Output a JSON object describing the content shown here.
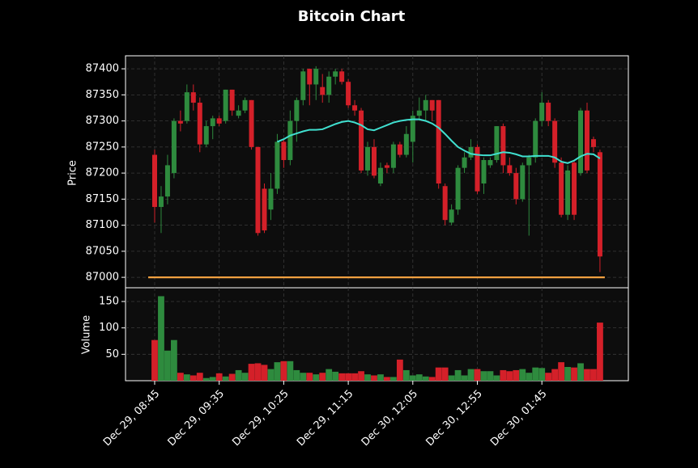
{
  "chart_data": {
    "type": "candlestick",
    "title": "Bitcoin Chart",
    "ylabel": "Price",
    "categories": [
      "Dec 29, 08:45",
      null,
      null,
      null,
      null,
      null,
      null,
      null,
      null,
      null,
      "Dec 29, 09:35",
      null,
      null,
      null,
      null,
      null,
      null,
      null,
      null,
      null,
      "Dec 29, 10:25",
      null,
      null,
      null,
      null,
      null,
      null,
      null,
      null,
      null,
      "Dec 29, 11:15",
      null,
      null,
      null,
      null,
      null,
      null,
      null,
      null,
      null,
      "Dec 30, 12:05",
      null,
      null,
      null,
      null,
      null,
      null,
      null,
      null,
      null,
      "Dec 30, 12:55",
      null,
      null,
      null,
      null,
      null,
      null,
      null,
      null,
      null,
      "Dec 30, 01:45",
      null,
      null,
      null,
      null,
      null,
      null,
      null,
      null,
      null
    ],
    "open": [
      87235,
      87135,
      87155,
      87200,
      87300,
      87300,
      87355,
      87335,
      87255,
      87290,
      87305,
      87300,
      87360,
      87310,
      87320,
      87340,
      87250,
      87170,
      87130,
      87170,
      87260,
      87225,
      87300,
      87340,
      87400,
      87370,
      87365,
      87350,
      87385,
      87395,
      87375,
      87330,
      87320,
      87205,
      87250,
      87180,
      87215,
      87210,
      87255,
      87235,
      87260,
      87310,
      87320,
      87340,
      87340,
      87175,
      87105,
      87130,
      87210,
      87230,
      87250,
      87180,
      87215,
      87225,
      87290,
      87215,
      87200,
      87150,
      87215,
      87230,
      87300,
      87335,
      87300,
      87220,
      87120,
      87220,
      87200,
      87320,
      87265,
      87240
    ],
    "high": [
      87245,
      87175,
      87235,
      87305,
      87320,
      87370,
      87370,
      87345,
      87300,
      87310,
      87310,
      87360,
      87360,
      87330,
      87345,
      87340,
      87250,
      87180,
      87200,
      87275,
      87265,
      87320,
      87345,
      87400,
      87400,
      87405,
      87390,
      87395,
      87400,
      87400,
      87380,
      87340,
      87325,
      87260,
      87265,
      87220,
      87220,
      87260,
      87260,
      87290,
      87320,
      87345,
      87350,
      87340,
      87340,
      87180,
      87140,
      87215,
      87240,
      87265,
      87255,
      87230,
      87230,
      87290,
      87295,
      87230,
      87210,
      87220,
      87235,
      87305,
      87355,
      87340,
      87305,
      87230,
      87215,
      87225,
      87325,
      87335,
      87270,
      87245
    ],
    "low": [
      87105,
      87085,
      87140,
      87190,
      87280,
      87295,
      87320,
      87240,
      87250,
      87265,
      87290,
      87295,
      87310,
      87305,
      87315,
      87245,
      87080,
      87085,
      87110,
      87160,
      87210,
      87215,
      87260,
      87330,
      87330,
      87340,
      87335,
      87335,
      87370,
      87370,
      87325,
      87310,
      87200,
      87195,
      87190,
      87175,
      87200,
      87200,
      87230,
      87230,
      87220,
      87300,
      87300,
      87300,
      87170,
      87100,
      87100,
      87120,
      87200,
      87225,
      87160,
      87160,
      87210,
      87220,
      87200,
      87195,
      87140,
      87145,
      87080,
      87220,
      87290,
      87290,
      87210,
      87115,
      87110,
      87110,
      87195,
      87200,
      87240,
      87010
    ],
    "close": [
      87135,
      87155,
      87215,
      87300,
      87295,
      87355,
      87335,
      87255,
      87290,
      87305,
      87295,
      87360,
      87320,
      87320,
      87340,
      87250,
      87085,
      87090,
      87170,
      87260,
      87225,
      87300,
      87340,
      87395,
      87370,
      87400,
      87350,
      87385,
      87395,
      87375,
      87330,
      87320,
      87205,
      87250,
      87195,
      87210,
      87210,
      87255,
      87235,
      87275,
      87310,
      87320,
      87340,
      87320,
      87180,
      87110,
      87130,
      87210,
      87230,
      87250,
      87165,
      87225,
      87225,
      87290,
      87215,
      87200,
      87150,
      87215,
      87230,
      87300,
      87335,
      87300,
      87220,
      87120,
      87205,
      87120,
      87320,
      87205,
      87250,
      87040
    ],
    "ylim": [
      86980,
      87425
    ],
    "yticks": [
      87000,
      87050,
      87100,
      87150,
      87200,
      87250,
      87300,
      87350,
      87400
    ],
    "grid": true,
    "up_color": "#2e8b3e",
    "down_color": "#d42029",
    "hline": {
      "value": 87000,
      "color": "#f0a040"
    },
    "ma": {
      "color": "#40e0d0",
      "values": [
        null,
        null,
        null,
        null,
        null,
        null,
        null,
        null,
        null,
        null,
        null,
        null,
        null,
        null,
        null,
        null,
        null,
        null,
        null,
        87260,
        87265,
        87272,
        87276,
        87280,
        87283,
        87283,
        87284,
        87289,
        87294,
        87298,
        87300,
        87297,
        87292,
        87284,
        87282,
        87287,
        87292,
        87297,
        87300,
        87302,
        87303,
        87303,
        87300,
        87295,
        87287,
        87275,
        87262,
        87250,
        87243,
        87237,
        87235,
        87234,
        87234,
        87237,
        87240,
        87239,
        87236,
        87232,
        87232,
        87233,
        87233,
        87233,
        87230,
        87222,
        87219,
        87224,
        87232,
        87237,
        87236,
        87228
      ]
    },
    "volume": {
      "ylabel": "Volume",
      "ylim": [
        0,
        176
      ],
      "yticks": [
        50,
        100,
        150
      ],
      "values": [
        77,
        160,
        57,
        77,
        15,
        12,
        10,
        15,
        5,
        7,
        14,
        8,
        13,
        20,
        15,
        32,
        33,
        30,
        22,
        35,
        37,
        37,
        20,
        15,
        15,
        12,
        15,
        22,
        17,
        14,
        14,
        14,
        18,
        12,
        10,
        12,
        7,
        7,
        40,
        20,
        10,
        12,
        8,
        7,
        25,
        25,
        10,
        20,
        10,
        22,
        22,
        18,
        18,
        10,
        20,
        18,
        20,
        22,
        15,
        25,
        24,
        15,
        22,
        35,
        26,
        25,
        33,
        22,
        22,
        110
      ]
    }
  }
}
